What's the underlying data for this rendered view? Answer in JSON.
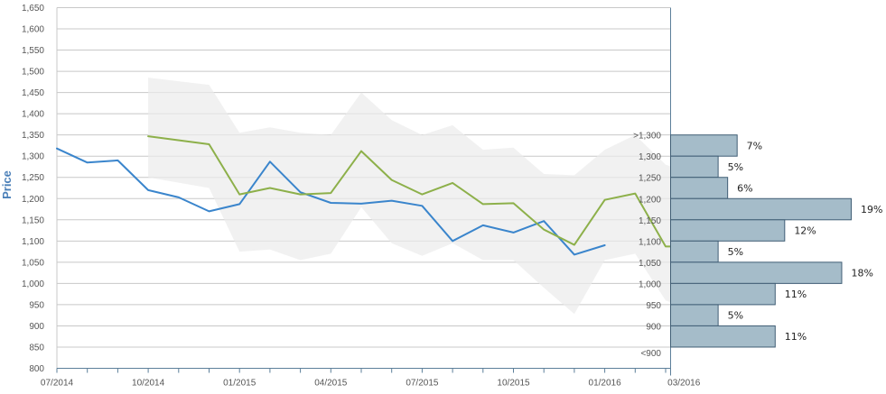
{
  "chart_data": {
    "type": "line",
    "ylabel": "Price",
    "xlabel": "",
    "ylim": [
      800,
      1650
    ],
    "ytick_step": 50,
    "x_ticks": [
      "07/2014",
      "10/2014",
      "01/2015",
      "04/2015",
      "07/2015",
      "10/2015",
      "01/2016",
      "03/2016"
    ],
    "grid": true,
    "colors": {
      "actual": "#3a85cc",
      "forecast": "#8db04a",
      "band": "#ebebeb",
      "hist_fill": "#a5bcc9",
      "hist_stroke": "#405e75",
      "axis": "#5c7f9a",
      "grid": "#c8c8c8"
    },
    "series": [
      {
        "id": "actual",
        "x": [
          0,
          1,
          2,
          3,
          4,
          5,
          6,
          7,
          8,
          9,
          10,
          11,
          12,
          13,
          14,
          15,
          16,
          17,
          18
        ],
        "values": [
          1318,
          1285,
          1290,
          1220,
          1203,
          1170,
          1187,
          1287,
          1215,
          1190,
          1188,
          1195,
          1183,
          1100,
          1137,
          1120,
          1147,
          1068,
          1090
        ]
      },
      {
        "id": "forecast",
        "x": [
          3,
          5,
          6,
          7,
          8,
          9,
          10,
          11,
          12,
          13,
          14,
          15,
          16,
          17,
          18,
          19,
          20,
          20.2
        ],
        "values": [
          1347,
          1328,
          1210,
          1225,
          1210,
          1213,
          1312,
          1244,
          1210,
          1237,
          1187,
          1189,
          1127,
          1091,
          1197,
          1212,
          1087,
          1087
        ]
      }
    ],
    "band": {
      "x": [
        3,
        5,
        6,
        7,
        8,
        9,
        10,
        11,
        12,
        13,
        14,
        15,
        16,
        17,
        18,
        19,
        20,
        20.2
      ],
      "upper": [
        1485,
        1468,
        1355,
        1368,
        1355,
        1350,
        1450,
        1385,
        1350,
        1373,
        1315,
        1320,
        1258,
        1255,
        1315,
        1350,
        1280,
        1275
      ],
      "lower": [
        1250,
        1225,
        1075,
        1080,
        1055,
        1070,
        1180,
        1095,
        1065,
        1095,
        1055,
        1055,
        990,
        928,
        1055,
        1070,
        960,
        955
      ]
    },
    "distribution": {
      "labels": [
        ">1,300",
        "1,300",
        "1,250",
        "1,200",
        "1,150",
        "1,100",
        "1,050",
        "1,000",
        "950",
        "900",
        "<900"
      ],
      "bins": [
        [
          1300,
          1350
        ],
        [
          1250,
          1300
        ],
        [
          1200,
          1250
        ],
        [
          1150,
          1200
        ],
        [
          1100,
          1150
        ],
        [
          1050,
          1100
        ],
        [
          1000,
          1050
        ],
        [
          950,
          1000
        ],
        [
          900,
          950
        ],
        [
          850,
          900
        ]
      ],
      "percent_labels": [
        "7%",
        "5%",
        "6%",
        "19%",
        "12%",
        "5%",
        "18%",
        "11%",
        "5%",
        "11%"
      ],
      "percents": [
        7,
        5,
        6,
        19,
        12,
        5,
        18,
        11,
        5,
        11
      ]
    }
  }
}
